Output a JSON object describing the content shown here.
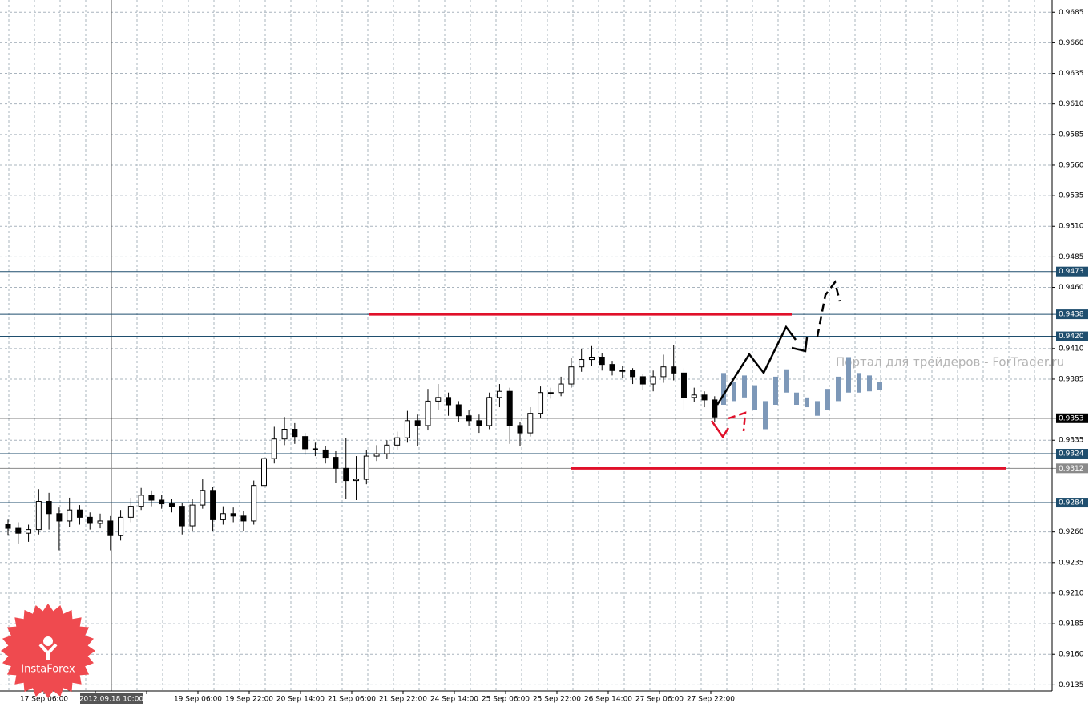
{
  "chart_data": {
    "type": "candlestick",
    "x_labels": [
      "17 Sep 06:00",
      null,
      null,
      "19 Sep 06:00",
      "19 Sep 22:00",
      "20 Sep 14:00",
      "21 Sep 06:00",
      "21 Sep 22:00",
      "24 Sep 14:00",
      "25 Sep 06:00",
      "25 Sep 22:00",
      "26 Sep 14:00",
      "27 Sep 06:00",
      "27 Sep 22:00"
    ],
    "crosshair_label": "2012.09.18 10:00",
    "open": [
      0.9266,
      0.9263,
      0.9259,
      0.9262,
      0.9285,
      0.9275,
      0.9269,
      0.9278,
      0.9272,
      0.9267,
      0.9269,
      0.9257,
      0.9272,
      0.9281,
      0.929,
      0.9286,
      0.9283,
      0.9281,
      0.9265,
      0.9282,
      0.9294,
      0.927,
      0.9275,
      0.9273,
      0.9269,
      0.9298,
      0.932,
      0.9336,
      0.9344,
      0.9338,
      0.9328,
      0.9327,
      0.9321,
      0.9312,
      0.9302,
      0.9303,
      0.9322,
      0.9324,
      0.9331,
      0.9337,
      0.9351,
      0.9347,
      0.9367,
      0.937,
      0.9364,
      0.9355,
      0.9351,
      0.9347,
      0.937,
      0.9375,
      0.9347,
      0.9341,
      0.9357,
      0.9374,
      0.9374,
      0.9381,
      0.9395,
      0.9401,
      0.9403,
      0.9397,
      0.9392,
      0.9392,
      0.9387,
      0.9381,
      0.9387,
      0.9395,
      0.939,
      0.937,
      0.9372,
      0.9368
    ],
    "high": [
      0.927,
      0.9268,
      0.9266,
      0.9295,
      0.9292,
      0.928,
      0.9288,
      0.9282,
      0.9276,
      0.9275,
      0.9273,
      0.9278,
      0.9288,
      0.9296,
      0.9294,
      0.929,
      0.9287,
      0.9284,
      0.9287,
      0.9303,
      0.9297,
      0.9281,
      0.928,
      0.9277,
      0.9302,
      0.9325,
      0.9346,
      0.9354,
      0.9349,
      0.9341,
      0.9333,
      0.933,
      0.9326,
      0.9337,
      0.9322,
      0.9327,
      0.9331,
      0.9335,
      0.9342,
      0.9359,
      0.9356,
      0.9377,
      0.9381,
      0.9374,
      0.9367,
      0.936,
      0.9356,
      0.9374,
      0.9381,
      0.9378,
      0.935,
      0.9362,
      0.9379,
      0.9378,
      0.9387,
      0.9402,
      0.941,
      0.9412,
      0.9406,
      0.94,
      0.9396,
      0.9394,
      0.9389,
      0.9392,
      0.9405,
      0.9413,
      0.9394,
      0.9378,
      0.9375,
      0.9371
    ],
    "low": [
      0.9257,
      0.925,
      0.9252,
      0.9258,
      0.9262,
      0.9245,
      0.9264,
      0.9266,
      0.9262,
      0.9263,
      0.9245,
      0.9253,
      0.9268,
      0.9278,
      0.9281,
      0.9279,
      0.9276,
      0.9258,
      0.9261,
      0.9279,
      0.9261,
      0.9266,
      0.9268,
      0.9261,
      0.9266,
      0.9294,
      0.9316,
      0.9331,
      0.9332,
      0.9323,
      0.9322,
      0.9316,
      0.93,
      0.9287,
      0.9286,
      0.9299,
      0.9318,
      0.932,
      0.9327,
      0.9333,
      0.933,
      0.9343,
      0.936,
      0.9355,
      0.935,
      0.9347,
      0.9341,
      0.9344,
      0.9362,
      0.9332,
      0.933,
      0.9338,
      0.9353,
      0.9369,
      0.9371,
      0.9378,
      0.9391,
      0.9396,
      0.9392,
      0.9388,
      0.9386,
      0.9381,
      0.9376,
      0.9375,
      0.9382,
      0.9384,
      0.936,
      0.9366,
      0.9362,
      0.935
    ],
    "close": [
      0.9263,
      0.9259,
      0.9262,
      0.9285,
      0.9275,
      0.9269,
      0.9278,
      0.9272,
      0.9267,
      0.9269,
      0.9257,
      0.9272,
      0.9281,
      0.929,
      0.9286,
      0.9283,
      0.9281,
      0.9265,
      0.9282,
      0.9294,
      0.927,
      0.9275,
      0.9273,
      0.9269,
      0.9298,
      0.932,
      0.9336,
      0.9344,
      0.9338,
      0.9328,
      0.9327,
      0.9321,
      0.9312,
      0.9302,
      0.9303,
      0.9322,
      0.9324,
      0.9331,
      0.9337,
      0.9351,
      0.9347,
      0.9367,
      0.937,
      0.9364,
      0.9355,
      0.9351,
      0.9347,
      0.937,
      0.9375,
      0.9347,
      0.9341,
      0.9357,
      0.9374,
      0.9374,
      0.9381,
      0.9395,
      0.9401,
      0.9403,
      0.9397,
      0.9392,
      0.9392,
      0.9387,
      0.9381,
      0.9387,
      0.9395,
      0.939,
      0.937,
      0.9372,
      0.9368,
      0.9354
    ],
    "projection": {
      "color": "#7d98b8",
      "high": [
        0.939,
        0.9383,
        0.9388,
        0.938,
        0.9367,
        0.9387,
        0.9393,
        0.9374,
        0.937,
        0.9367,
        0.9377,
        0.9387,
        0.9403,
        0.939,
        0.9388,
        0.9383
      ],
      "low": [
        0.9364,
        0.9367,
        0.937,
        0.936,
        0.9344,
        0.9364,
        0.9374,
        0.9364,
        0.9362,
        0.9355,
        0.936,
        0.9367,
        0.9374,
        0.9374,
        0.9375,
        0.9376
      ]
    },
    "ylim": [
      0.913,
      0.9695
    ],
    "yticks": [
      0.9685,
      {
        "value": 0.966,
        "label": "0.9660"
      },
      0.9635,
      {
        "value": 0.961,
        "label": "0.9610"
      },
      0.9585,
      {
        "value": 0.956,
        "label": "0.9560"
      },
      0.9535,
      {
        "value": 0.951,
        "label": "0.9510"
      },
      0.9485,
      {
        "value": 0.946,
        "label": "0.9460"
      },
      {
        "value": 0.941,
        "label": "0.9410"
      },
      0.9385,
      0.9335,
      {
        "value": 0.926,
        "label": "0.9260"
      },
      0.9235,
      {
        "value": 0.921,
        "label": "0.9210"
      },
      0.9185,
      {
        "value": 0.916,
        "label": "0.9160"
      },
      0.9135
    ],
    "levels": [
      0.9473,
      0.9438,
      {
        "value": 0.942,
        "label": "0.9420"
      },
      0.9353,
      0.9324,
      0.9312,
      0.9284
    ],
    "level_colors": [
      "#1f4e6e",
      "#1f4e6e",
      "#1f4e6e",
      "#000000",
      "#1f4e6e",
      "#8a8a8a",
      "#1f4e6e"
    ],
    "resistance": 0.9438,
    "support": 0.9312,
    "watermark": "Портал для трейдеров - ForTrader.ru",
    "logo": "InstaForex",
    "grid": true
  }
}
